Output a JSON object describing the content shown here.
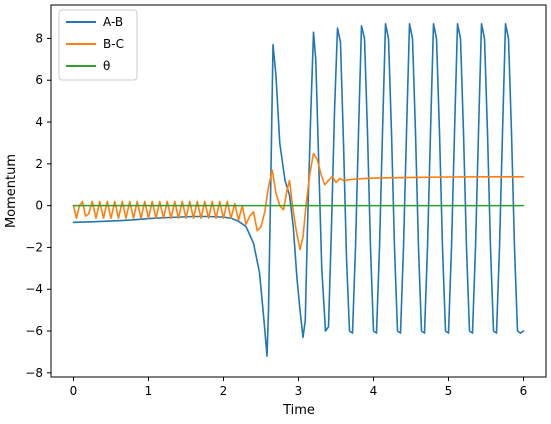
{
  "chart_data": {
    "type": "line",
    "xlabel": "Time",
    "ylabel": "Momentum",
    "xlim": [
      -0.3,
      6.3
    ],
    "ylim": [
      -8.2,
      9.6
    ],
    "xticks": [
      0,
      1,
      2,
      3,
      4,
      5,
      6
    ],
    "xtick_labels": [
      "0",
      "1",
      "2",
      "3",
      "4",
      "5",
      "6"
    ],
    "yticks": [
      -8,
      -6,
      -4,
      -2,
      0,
      2,
      4,
      6,
      8
    ],
    "ytick_labels": [
      "−8",
      "−6",
      "−4",
      "−2",
      "0",
      "2",
      "4",
      "6",
      "8"
    ],
    "grid": false,
    "legend_position": "upper-left",
    "series": [
      {
        "name": "A-B",
        "color": "#1f77b4",
        "points": [
          [
            0.0,
            -0.8
          ],
          [
            0.2,
            -0.78
          ],
          [
            0.4,
            -0.75
          ],
          [
            0.6,
            -0.72
          ],
          [
            0.8,
            -0.68
          ],
          [
            1.0,
            -0.62
          ],
          [
            1.2,
            -0.58
          ],
          [
            1.4,
            -0.55
          ],
          [
            1.6,
            -0.52
          ],
          [
            1.8,
            -0.52
          ],
          [
            2.0,
            -0.55
          ],
          [
            2.1,
            -0.6
          ],
          [
            2.2,
            -0.75
          ],
          [
            2.3,
            -1.0
          ],
          [
            2.4,
            -1.8
          ],
          [
            2.48,
            -3.2
          ],
          [
            2.54,
            -5.5
          ],
          [
            2.58,
            -7.2
          ],
          [
            2.6,
            -5.0
          ],
          [
            2.63,
            1.0
          ],
          [
            2.66,
            7.7
          ],
          [
            2.7,
            6.2
          ],
          [
            2.75,
            3.0
          ],
          [
            2.82,
            1.2
          ],
          [
            2.88,
            0.5
          ],
          [
            2.93,
            -1.0
          ],
          [
            2.98,
            -3.5
          ],
          [
            3.02,
            -5.0
          ],
          [
            3.06,
            -6.3
          ],
          [
            3.09,
            -5.5
          ],
          [
            3.12,
            -1.0
          ],
          [
            3.16,
            4.0
          ],
          [
            3.2,
            8.3
          ],
          [
            3.23,
            7.0
          ],
          [
            3.27,
            2.0
          ],
          [
            3.31,
            -3.0
          ],
          [
            3.36,
            -6.0
          ],
          [
            3.4,
            -5.8
          ],
          [
            3.44,
            -1.0
          ],
          [
            3.48,
            4.5
          ],
          [
            3.52,
            8.5
          ],
          [
            3.56,
            7.8
          ],
          [
            3.6,
            3.0
          ],
          [
            3.64,
            -2.5
          ],
          [
            3.68,
            -6.0
          ],
          [
            3.72,
            -6.1
          ],
          [
            3.76,
            -2.0
          ],
          [
            3.8,
            3.5
          ],
          [
            3.84,
            8.6
          ],
          [
            3.88,
            8.0
          ],
          [
            3.92,
            3.5
          ],
          [
            3.96,
            -2.0
          ],
          [
            4.0,
            -6.0
          ],
          [
            4.04,
            -6.1
          ],
          [
            4.08,
            -2.0
          ],
          [
            4.12,
            3.5
          ],
          [
            4.16,
            8.7
          ],
          [
            4.2,
            8.0
          ],
          [
            4.24,
            3.5
          ],
          [
            4.28,
            -2.0
          ],
          [
            4.32,
            -6.0
          ],
          [
            4.36,
            -6.1
          ],
          [
            4.4,
            -2.0
          ],
          [
            4.44,
            3.5
          ],
          [
            4.48,
            8.7
          ],
          [
            4.52,
            8.0
          ],
          [
            4.56,
            3.5
          ],
          [
            4.6,
            -2.0
          ],
          [
            4.64,
            -6.0
          ],
          [
            4.68,
            -6.1
          ],
          [
            4.72,
            -2.0
          ],
          [
            4.76,
            3.5
          ],
          [
            4.8,
            8.7
          ],
          [
            4.84,
            8.0
          ],
          [
            4.88,
            3.5
          ],
          [
            4.92,
            -2.0
          ],
          [
            4.96,
            -6.0
          ],
          [
            5.0,
            -6.1
          ],
          [
            5.04,
            -2.0
          ],
          [
            5.08,
            3.5
          ],
          [
            5.12,
            8.7
          ],
          [
            5.16,
            8.0
          ],
          [
            5.2,
            3.5
          ],
          [
            5.24,
            -2.0
          ],
          [
            5.28,
            -6.0
          ],
          [
            5.32,
            -6.1
          ],
          [
            5.36,
            -2.0
          ],
          [
            5.4,
            3.5
          ],
          [
            5.44,
            8.7
          ],
          [
            5.48,
            8.0
          ],
          [
            5.52,
            3.5
          ],
          [
            5.56,
            -2.0
          ],
          [
            5.6,
            -6.0
          ],
          [
            5.64,
            -6.1
          ],
          [
            5.68,
            -2.0
          ],
          [
            5.72,
            3.5
          ],
          [
            5.76,
            8.7
          ],
          [
            5.8,
            8.0
          ],
          [
            5.84,
            3.5
          ],
          [
            5.88,
            -2.0
          ],
          [
            5.92,
            -6.0
          ],
          [
            5.96,
            -6.1
          ],
          [
            6.0,
            -6.0
          ]
        ]
      },
      {
        "name": "B-C",
        "color": "#ff7f0e",
        "points": [
          [
            0.0,
            0.0
          ],
          [
            0.04,
            -0.6
          ],
          [
            0.08,
            0.0
          ],
          [
            0.12,
            0.2
          ],
          [
            0.16,
            -0.5
          ],
          [
            0.2,
            -0.4
          ],
          [
            0.25,
            0.2
          ],
          [
            0.3,
            -0.6
          ],
          [
            0.35,
            0.2
          ],
          [
            0.4,
            -0.6
          ],
          [
            0.45,
            0.2
          ],
          [
            0.5,
            -0.6
          ],
          [
            0.55,
            0.2
          ],
          [
            0.6,
            -0.6
          ],
          [
            0.65,
            0.2
          ],
          [
            0.7,
            -0.6
          ],
          [
            0.75,
            0.2
          ],
          [
            0.8,
            -0.6
          ],
          [
            0.85,
            0.2
          ],
          [
            0.9,
            -0.6
          ],
          [
            0.95,
            0.2
          ],
          [
            1.0,
            -0.6
          ],
          [
            1.05,
            0.2
          ],
          [
            1.1,
            -0.6
          ],
          [
            1.15,
            0.2
          ],
          [
            1.2,
            -0.6
          ],
          [
            1.25,
            0.2
          ],
          [
            1.3,
            -0.6
          ],
          [
            1.35,
            0.2
          ],
          [
            1.4,
            -0.6
          ],
          [
            1.45,
            0.2
          ],
          [
            1.5,
            -0.6
          ],
          [
            1.55,
            0.2
          ],
          [
            1.6,
            -0.6
          ],
          [
            1.65,
            0.2
          ],
          [
            1.7,
            -0.6
          ],
          [
            1.75,
            0.2
          ],
          [
            1.8,
            -0.6
          ],
          [
            1.85,
            0.2
          ],
          [
            1.9,
            -0.6
          ],
          [
            1.95,
            0.2
          ],
          [
            2.0,
            -0.6
          ],
          [
            2.05,
            0.2
          ],
          [
            2.1,
            -0.6
          ],
          [
            2.15,
            0.1
          ],
          [
            2.2,
            -0.7
          ],
          [
            2.25,
            0.0
          ],
          [
            2.3,
            -0.9
          ],
          [
            2.35,
            -0.5
          ],
          [
            2.4,
            -0.3
          ],
          [
            2.45,
            -1.2
          ],
          [
            2.5,
            -1.0
          ],
          [
            2.55,
            -0.3
          ],
          [
            2.6,
            0.9
          ],
          [
            2.65,
            1.7
          ],
          [
            2.7,
            0.6
          ],
          [
            2.75,
            0.0
          ],
          [
            2.8,
            -0.2
          ],
          [
            2.85,
            0.8
          ],
          [
            2.88,
            1.2
          ],
          [
            2.92,
            0.0
          ],
          [
            2.97,
            -1.2
          ],
          [
            3.02,
            -2.1
          ],
          [
            3.06,
            -1.5
          ],
          [
            3.1,
            0.0
          ],
          [
            3.15,
            1.5
          ],
          [
            3.2,
            2.5
          ],
          [
            3.25,
            2.2
          ],
          [
            3.3,
            1.5
          ],
          [
            3.35,
            1.0
          ],
          [
            3.4,
            1.2
          ],
          [
            3.45,
            1.4
          ],
          [
            3.5,
            1.1
          ],
          [
            3.55,
            1.3
          ],
          [
            3.6,
            1.2
          ],
          [
            3.7,
            1.25
          ],
          [
            3.8,
            1.28
          ],
          [
            3.9,
            1.3
          ],
          [
            4.0,
            1.32
          ],
          [
            4.2,
            1.33
          ],
          [
            4.5,
            1.35
          ],
          [
            5.0,
            1.37
          ],
          [
            5.5,
            1.38
          ],
          [
            6.0,
            1.38
          ]
        ]
      },
      {
        "name": "θ",
        "color": "#2ca02c",
        "points": [
          [
            0.0,
            0.0
          ],
          [
            1.0,
            0.0
          ],
          [
            2.0,
            0.0
          ],
          [
            3.0,
            0.0
          ],
          [
            4.0,
            0.0
          ],
          [
            5.0,
            0.0
          ],
          [
            6.0,
            0.0
          ]
        ]
      }
    ]
  }
}
